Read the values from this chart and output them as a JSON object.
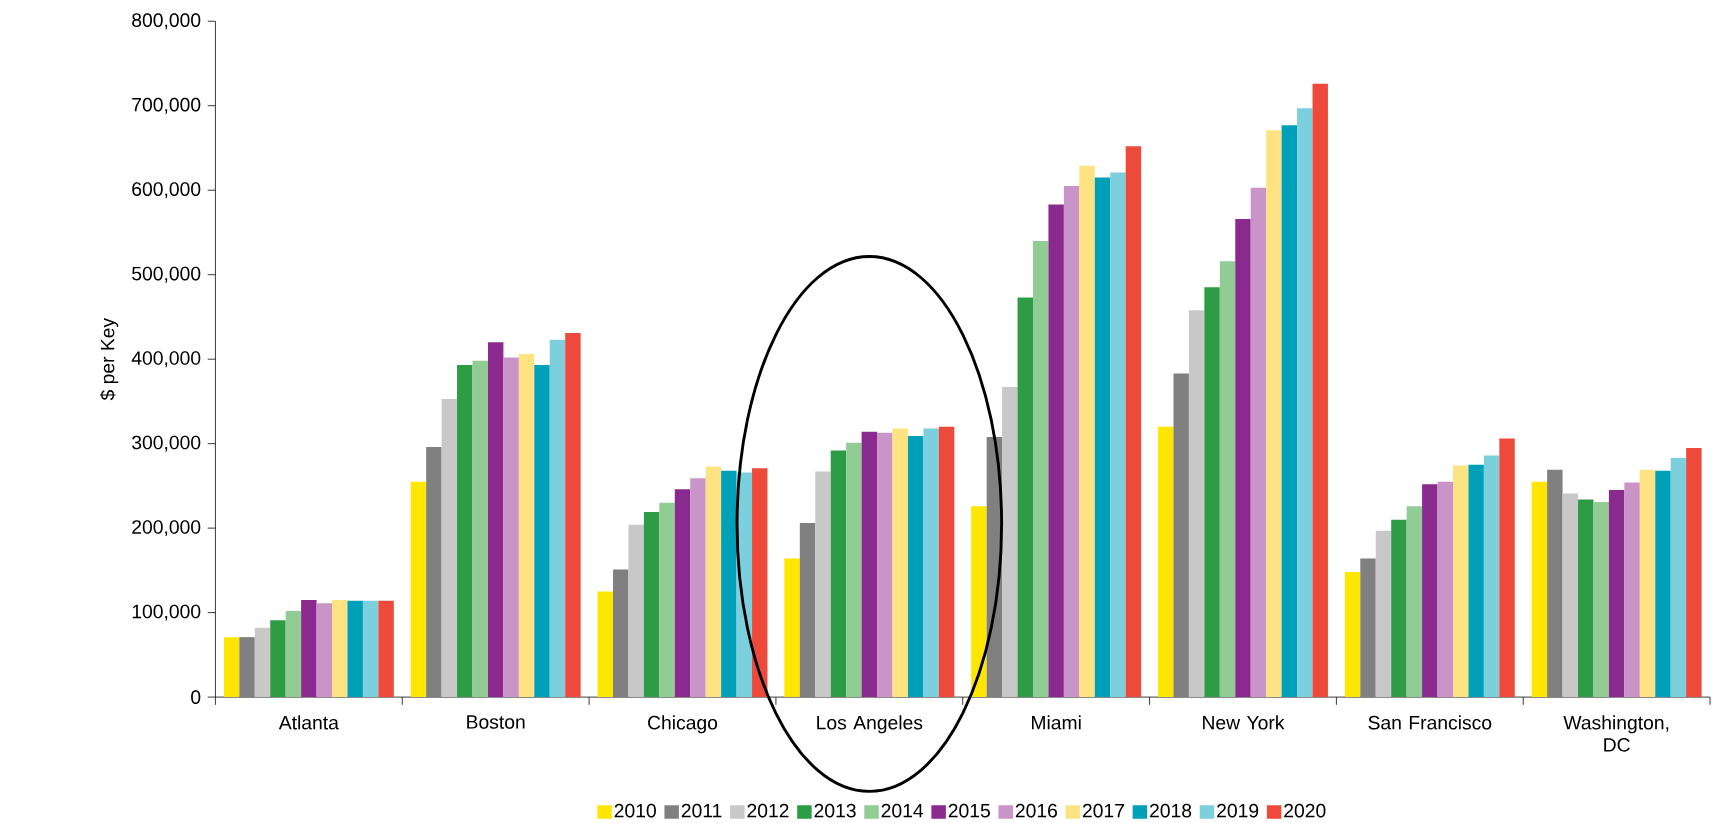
{
  "chart_data": {
    "type": "bar",
    "ylabel": "$ per Key",
    "categories": [
      "Atlanta",
      "Boston",
      "Chicago",
      "Los Angeles",
      "Miami",
      "New York",
      "San Francisco",
      "Washington, DC"
    ],
    "ylim": [
      0,
      800000
    ],
    "yticks": [
      0,
      {
        "value": 100000,
        "label": "100,000"
      },
      {
        "value": 200000,
        "label": "200,000"
      },
      {
        "value": 300000,
        "label": "300,000"
      },
      {
        "value": 400000,
        "label": "400,000"
      },
      {
        "value": 500000,
        "label": "500,000"
      },
      {
        "value": 600000,
        "label": "600,000"
      },
      {
        "value": 700000,
        "label": "700,000"
      },
      {
        "value": 800000,
        "label": "800,000"
      }
    ],
    "legend": "bottom",
    "series": [
      {
        "name": "2010",
        "color": "#ffe600",
        "values": [
          71000,
          255000,
          125000,
          164000,
          226000,
          320000,
          148000,
          255000
        ]
      },
      {
        "name": "2011",
        "color": "#808080",
        "values": [
          71000,
          296000,
          151000,
          206000,
          308000,
          383000,
          164000,
          269000
        ]
      },
      {
        "name": "2012",
        "color": "#c8c8c8",
        "values": [
          82000,
          353000,
          204000,
          267000,
          367000,
          458000,
          197000,
          241000
        ]
      },
      {
        "name": "2013",
        "color": "#2e9b45",
        "values": [
          91000,
          393000,
          219000,
          292000,
          473000,
          485000,
          210000,
          234000
        ]
      },
      {
        "name": "2014",
        "color": "#92cc95",
        "values": [
          102000,
          398000,
          230000,
          301000,
          540000,
          516000,
          226000,
          231000
        ]
      },
      {
        "name": "2015",
        "color": "#8b2a8e",
        "values": [
          115000,
          420000,
          246000,
          314000,
          583000,
          566000,
          252000,
          245000
        ]
      },
      {
        "name": "2016",
        "color": "#c994c7",
        "values": [
          111000,
          402000,
          259000,
          313000,
          605000,
          603000,
          255000,
          254000
        ]
      },
      {
        "name": "2017",
        "color": "#ffe382",
        "values": [
          115000,
          406000,
          273000,
          318000,
          629000,
          671000,
          274000,
          269000
        ]
      },
      {
        "name": "2018",
        "color": "#00a0b8",
        "values": [
          114000,
          393000,
          268000,
          309000,
          615000,
          677000,
          275000,
          268000
        ]
      },
      {
        "name": "2019",
        "color": "#7ccfdc",
        "values": [
          114000,
          423000,
          266000,
          318000,
          621000,
          697000,
          286000,
          283000
        ]
      },
      {
        "name": "2020",
        "color": "#ee4a3c",
        "values": [
          114000,
          431000,
          271000,
          320000,
          652000,
          726000,
          306000,
          295000
        ]
      }
    ]
  }
}
